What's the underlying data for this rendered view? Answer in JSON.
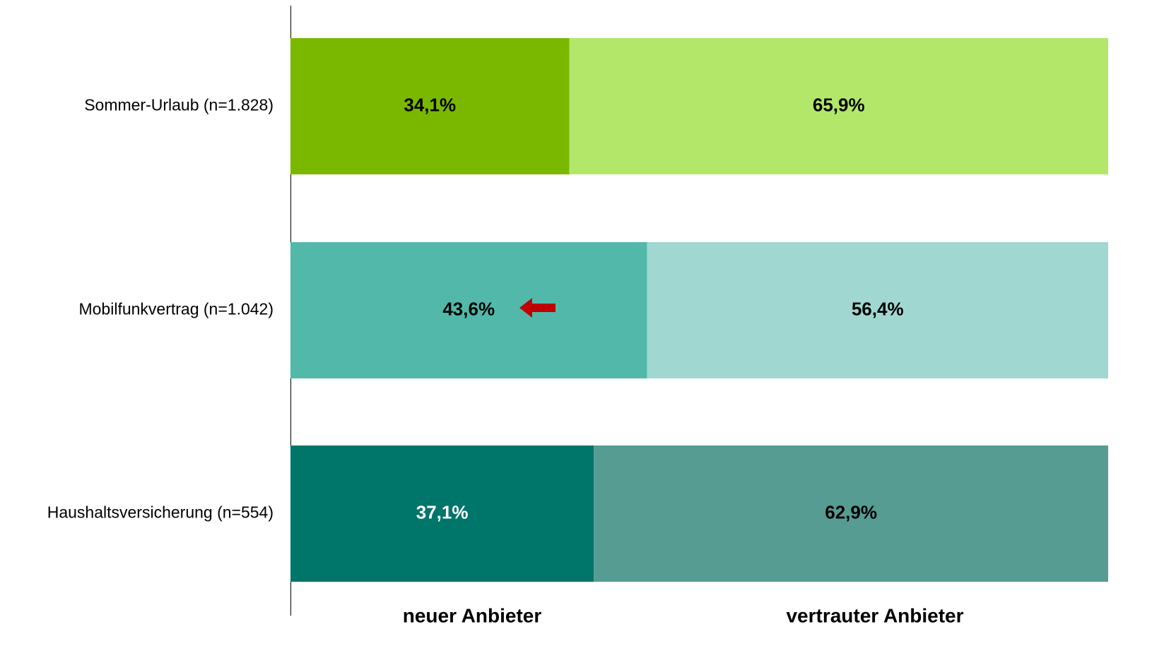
{
  "chart_data": {
    "type": "stacked-bar-horizontal",
    "categories": [
      "Sommer-Urlaub (n=1.828)",
      "Mobilfunkvertrag (n=1.042)",
      "Haushaltsversicherung (n=554)"
    ],
    "series": [
      {
        "name": "neuer Anbieter",
        "colors": [
          "#7ab800",
          "#52b9aa",
          "#00756a"
        ],
        "values": [
          34.1,
          43.6,
          37.1
        ],
        "value_labels": [
          "34,1%",
          "43,6%",
          "37,1%"
        ]
      },
      {
        "name": "vertrauter Anbieter",
        "colors": [
          "#b3e76a",
          "#a0d8d1",
          "#569c93"
        ],
        "values": [
          65.9,
          56.4,
          62.9
        ],
        "value_labels": [
          "65,9%",
          "56,4%",
          "62,9%"
        ]
      }
    ],
    "xlim": [
      0,
      100
    ]
  }
}
